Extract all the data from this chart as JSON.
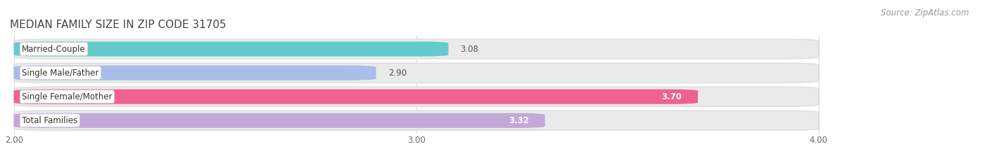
{
  "title": "MEDIAN FAMILY SIZE IN ZIP CODE 31705",
  "source": "Source: ZipAtlas.com",
  "categories": [
    "Married-Couple",
    "Single Male/Father",
    "Single Female/Mother",
    "Total Families"
  ],
  "values": [
    3.08,
    2.9,
    3.7,
    3.32
  ],
  "bar_colors": [
    "#63CCCA",
    "#AABDE8",
    "#F06090",
    "#C3A8D8"
  ],
  "bar_bg_color": "#EAEAEA",
  "row_bg_color": "#F0F0F0",
  "xlim_min": 2.0,
  "xlim_max": 4.0,
  "xticks": [
    2.0,
    3.0,
    4.0
  ],
  "xtick_labels": [
    "2.00",
    "3.00",
    "4.00"
  ],
  "title_fontsize": 11,
  "label_fontsize": 8.5,
  "value_fontsize": 8.5,
  "source_fontsize": 8.5,
  "bg_color": "#FFFFFF",
  "bar_height": 0.62,
  "value_outside_color": "#555555",
  "value_inside_color": "#FFFFFF",
  "value_inside": [
    false,
    false,
    true,
    true
  ]
}
